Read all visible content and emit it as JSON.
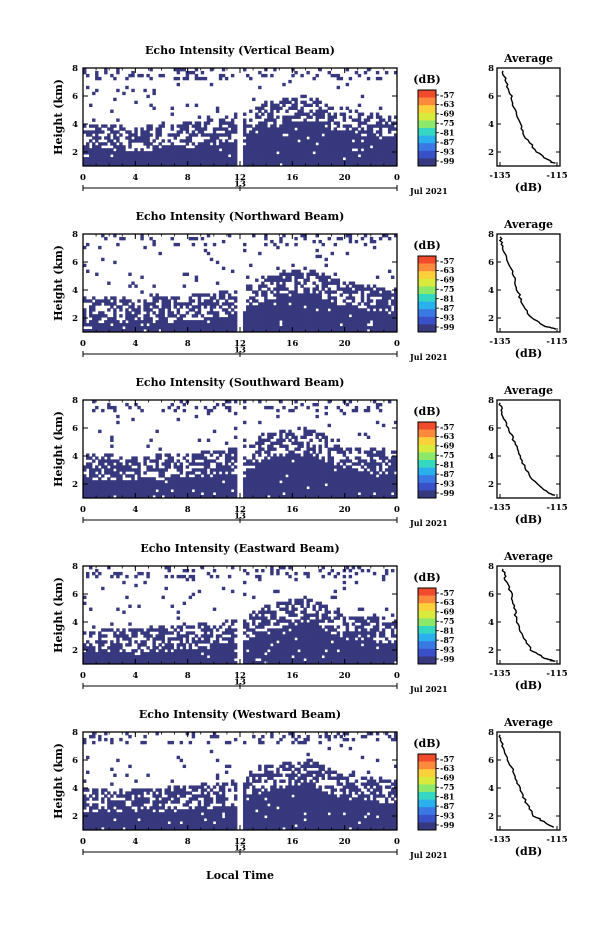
{
  "figure": {
    "xlabel": "Local Time",
    "day_label": "13",
    "month_label": "Jul 2021",
    "colorbar": {
      "unit": "(dB)",
      "ticks": [
        "-57",
        "-63",
        "-69",
        "-75",
        "-81",
        "-87",
        "-93",
        "-99"
      ],
      "colors": [
        "#f24a2c",
        "#fc8a3c",
        "#fbd03a",
        "#d8ea3c",
        "#8ce86a",
        "#34d8c0",
        "#2ab0ec",
        "#3a78e4",
        "#3a50c8",
        "#37387e"
      ]
    }
  },
  "chart_data": [
    {
      "type": "heatmap",
      "title": "Echo Intensity (Vertical Beam)",
      "ylabel": "Height (km)",
      "xlim": [
        0,
        24
      ],
      "ylim": [
        1,
        8
      ],
      "x_ticks": [
        "0",
        "4",
        "8",
        "12",
        "16",
        "20",
        "0"
      ],
      "y_ticks": [
        "2",
        "4",
        "6",
        "8"
      ],
      "dominant_value_dB": -99,
      "echo_top_km": [
        [
          0,
          3.5
        ],
        [
          4,
          3.2
        ],
        [
          8,
          3.5
        ],
        [
          12,
          4.0
        ],
        [
          14,
          5.0
        ],
        [
          17,
          5.5
        ],
        [
          20,
          4.5
        ],
        [
          24,
          4.0
        ]
      ],
      "data_gap_hour": 12,
      "average_profile": {
        "title": "Average",
        "xlabel": "(dB)",
        "xlim": [
          -135,
          -115
        ],
        "x_ticks": [
          "-135",
          "-115"
        ],
        "y_ticks": [
          "2",
          "4",
          "6",
          "8"
        ],
        "points": [
          [
            -134,
            7.8
          ],
          [
            -133,
            7.0
          ],
          [
            -131,
            6.0
          ],
          [
            -130,
            5.0
          ],
          [
            -128,
            4.0
          ],
          [
            -126,
            3.0
          ],
          [
            -122,
            2.0
          ],
          [
            -118,
            1.4
          ],
          [
            -116,
            1.2
          ]
        ]
      }
    },
    {
      "type": "heatmap",
      "title": "Echo Intensity (Northward Beam)",
      "ylabel": "Height (km)",
      "xlim": [
        0,
        24
      ],
      "ylim": [
        1,
        8
      ],
      "x_ticks": [
        "0",
        "4",
        "8",
        "12",
        "16",
        "20",
        "0"
      ],
      "y_ticks": [
        "2",
        "4",
        "6",
        "8"
      ],
      "dominant_value_dB": -99,
      "echo_top_km": [
        [
          0,
          3.0
        ],
        [
          4,
          2.8
        ],
        [
          8,
          3.0
        ],
        [
          12,
          3.5
        ],
        [
          14,
          4.5
        ],
        [
          17,
          5.0
        ],
        [
          20,
          4.0
        ],
        [
          24,
          3.5
        ]
      ],
      "data_gap_hour": 12,
      "average_profile": {
        "title": "Average",
        "xlabel": "(dB)",
        "xlim": [
          -135,
          -115
        ],
        "x_ticks": [
          "-135",
          "-115"
        ],
        "y_ticks": [
          "2",
          "4",
          "6",
          "8"
        ],
        "points": [
          [
            -135,
            7.8
          ],
          [
            -134,
            7.0
          ],
          [
            -132,
            6.0
          ],
          [
            -130,
            5.0
          ],
          [
            -129,
            4.0
          ],
          [
            -127,
            3.0
          ],
          [
            -124,
            2.0
          ],
          [
            -119,
            1.4
          ],
          [
            -115,
            1.2
          ]
        ]
      }
    },
    {
      "type": "heatmap",
      "title": "Echo Intensity (Southward Beam)",
      "ylabel": "Height (km)",
      "xlim": [
        0,
        24
      ],
      "ylim": [
        1,
        8
      ],
      "x_ticks": [
        "0",
        "4",
        "8",
        "12",
        "16",
        "20",
        "0"
      ],
      "y_ticks": [
        "2",
        "4",
        "6",
        "8"
      ],
      "dominant_value_dB": -99,
      "echo_top_km": [
        [
          0,
          3.6
        ],
        [
          4,
          3.4
        ],
        [
          8,
          3.6
        ],
        [
          12,
          4.0
        ],
        [
          14,
          5.0
        ],
        [
          17,
          5.5
        ],
        [
          20,
          4.2
        ],
        [
          24,
          3.8
        ]
      ],
      "data_gap_hour": 12,
      "average_profile": {
        "title": "Average",
        "xlabel": "(dB)",
        "xlim": [
          -135,
          -115
        ],
        "x_ticks": [
          "-135",
          "-115"
        ],
        "y_ticks": [
          "2",
          "4",
          "6",
          "8"
        ],
        "points": [
          [
            -135,
            7.8
          ],
          [
            -134,
            7.0
          ],
          [
            -132,
            6.0
          ],
          [
            -130,
            5.0
          ],
          [
            -128,
            4.0
          ],
          [
            -126,
            3.0
          ],
          [
            -122,
            2.0
          ],
          [
            -118,
            1.4
          ],
          [
            -116,
            1.2
          ]
        ]
      }
    },
    {
      "type": "heatmap",
      "title": "Echo Intensity (Eastward Beam)",
      "ylabel": "Height (km)",
      "xlim": [
        0,
        24
      ],
      "ylim": [
        1,
        8
      ],
      "x_ticks": [
        "0",
        "4",
        "8",
        "12",
        "16",
        "20",
        "0"
      ],
      "y_ticks": [
        "2",
        "4",
        "6",
        "8"
      ],
      "dominant_value_dB": -99,
      "echo_top_km": [
        [
          0,
          3.0
        ],
        [
          4,
          3.0
        ],
        [
          8,
          3.2
        ],
        [
          12,
          3.6
        ],
        [
          14,
          4.6
        ],
        [
          17,
          5.2
        ],
        [
          20,
          4.0
        ],
        [
          24,
          3.6
        ]
      ],
      "data_gap_hour": 12,
      "average_profile": {
        "title": "Average",
        "xlabel": "(dB)",
        "xlim": [
          -135,
          -115
        ],
        "x_ticks": [
          "-135",
          "-115"
        ],
        "y_ticks": [
          "2",
          "4",
          "6",
          "8"
        ],
        "points": [
          [
            -134,
            7.8
          ],
          [
            -133,
            7.0
          ],
          [
            -131,
            6.0
          ],
          [
            -130,
            5.0
          ],
          [
            -129,
            4.0
          ],
          [
            -127,
            3.0
          ],
          [
            -124,
            2.0
          ],
          [
            -119,
            1.4
          ],
          [
            -116,
            1.2
          ]
        ]
      }
    },
    {
      "type": "heatmap",
      "title": "Echo Intensity (Westward Beam)",
      "ylabel": "Height (km)",
      "xlim": [
        0,
        24
      ],
      "ylim": [
        1,
        8
      ],
      "x_ticks": [
        "0",
        "4",
        "8",
        "12",
        "16",
        "20",
        "0"
      ],
      "y_ticks": [
        "2",
        "4",
        "6",
        "8"
      ],
      "dominant_value_dB": -99,
      "echo_top_km": [
        [
          0,
          3.4
        ],
        [
          4,
          3.4
        ],
        [
          8,
          3.6
        ],
        [
          12,
          4.0
        ],
        [
          14,
          5.0
        ],
        [
          17,
          5.5
        ],
        [
          20,
          4.4
        ],
        [
          24,
          4.0
        ]
      ],
      "data_gap_hour": 12,
      "average_profile": {
        "title": "Average",
        "xlabel": "(dB)",
        "xlim": [
          -135,
          -115
        ],
        "x_ticks": [
          "-135",
          "-115"
        ],
        "y_ticks": [
          "2",
          "4",
          "6",
          "8"
        ],
        "points": [
          [
            -135,
            7.8
          ],
          [
            -134,
            7.0
          ],
          [
            -132,
            6.0
          ],
          [
            -130,
            5.0
          ],
          [
            -128,
            4.0
          ],
          [
            -126,
            3.0
          ],
          [
            -123,
            2.0
          ],
          [
            -118,
            1.4
          ],
          [
            -116,
            1.2
          ]
        ]
      }
    }
  ]
}
